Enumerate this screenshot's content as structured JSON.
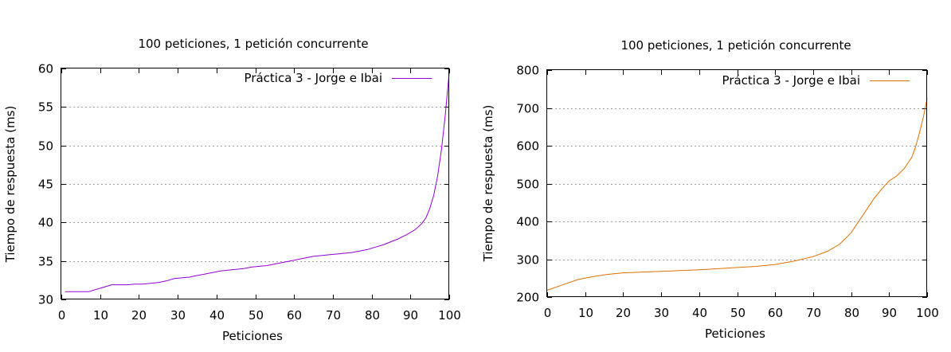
{
  "chart_data": [
    {
      "type": "line",
      "title": "100 peticiones, 1 petición concurrente",
      "xlabel": "Peticiones",
      "ylabel": "Tiempo de respuesta (ms)",
      "xlim": [
        0,
        100
      ],
      "ylim": [
        30,
        60
      ],
      "xticks": [
        0,
        10,
        20,
        30,
        40,
        50,
        60,
        70,
        80,
        90,
        100
      ],
      "yticks": [
        30,
        35,
        40,
        45,
        50,
        55,
        60
      ],
      "grid": "horizontal dotted",
      "legend_position": "top-right",
      "series": [
        {
          "name": "Práctica 3 - Jorge e Ibai",
          "color": "#9400d3",
          "x": [
            1,
            3,
            5,
            7,
            9,
            11,
            13,
            15,
            17,
            19,
            21,
            23,
            25,
            27,
            29,
            31,
            33,
            35,
            37,
            39,
            41,
            43,
            45,
            47,
            49,
            51,
            53,
            55,
            57,
            59,
            61,
            63,
            65,
            67,
            69,
            71,
            73,
            75,
            77,
            79,
            81,
            83,
            85,
            87,
            89,
            91,
            92,
            93,
            94,
            95,
            96,
            97,
            98,
            99,
            100
          ],
          "y": [
            31.0,
            31.0,
            31.0,
            31.0,
            31.3,
            31.6,
            31.9,
            31.9,
            31.9,
            32.0,
            32.0,
            32.1,
            32.2,
            32.4,
            32.7,
            32.8,
            32.9,
            33.1,
            33.3,
            33.5,
            33.7,
            33.8,
            33.9,
            34.0,
            34.2,
            34.3,
            34.4,
            34.6,
            34.8,
            35.0,
            35.2,
            35.4,
            35.6,
            35.7,
            35.8,
            35.9,
            36.0,
            36.1,
            36.3,
            36.5,
            36.8,
            37.1,
            37.5,
            37.9,
            38.4,
            39.0,
            39.4,
            39.9,
            40.6,
            41.8,
            43.5,
            46.0,
            49.5,
            54.0,
            59.5
          ]
        }
      ]
    },
    {
      "type": "line",
      "title": "100 peticiones, 1 petición concurrente",
      "xlabel": "Peticiones",
      "ylabel": "Tiempo de respuesta (ms)",
      "xlim": [
        0,
        100
      ],
      "ylim": [
        200,
        800
      ],
      "xticks": [
        0,
        10,
        20,
        30,
        40,
        50,
        60,
        70,
        80,
        90,
        100
      ],
      "yticks": [
        200,
        300,
        400,
        500,
        600,
        700,
        800
      ],
      "grid": "horizontal dotted",
      "legend_position": "top-right",
      "series": [
        {
          "name": "Práctica 3 - Jorge e Ibai",
          "color": "#e07000",
          "x": [
            0,
            4,
            8,
            12,
            16,
            20,
            25,
            30,
            35,
            40,
            45,
            50,
            55,
            60,
            65,
            70,
            74,
            77,
            80,
            82,
            84,
            86,
            88,
            90,
            92,
            94,
            96,
            97,
            98,
            99,
            100
          ],
          "y": [
            218,
            232,
            246,
            254,
            260,
            264,
            266,
            268,
            270,
            272,
            275,
            278,
            281,
            286,
            295,
            307,
            322,
            340,
            370,
            400,
            430,
            460,
            485,
            507,
            520,
            540,
            570,
            598,
            635,
            675,
            725
          ]
        }
      ]
    }
  ]
}
